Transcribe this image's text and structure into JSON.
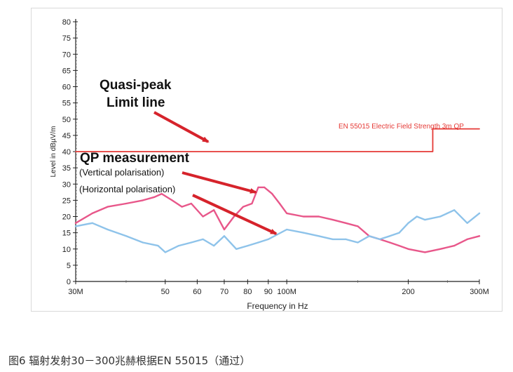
{
  "chart_data": {
    "type": "line",
    "title": "",
    "xlabel": "Frequency in Hz",
    "ylabel": "Level in dBµV/m",
    "x_scale": "log",
    "xlim": [
      30000000,
      300000000
    ],
    "ylim": [
      0,
      80
    ],
    "yticks": [
      0,
      5,
      10,
      15,
      20,
      25,
      30,
      35,
      40,
      45,
      50,
      55,
      60,
      65,
      70,
      75,
      80
    ],
    "xticks": [
      {
        "value": 30000000,
        "label": "30M"
      },
      {
        "value": 50000000,
        "label": "50"
      },
      {
        "value": 60000000,
        "label": "60"
      },
      {
        "value": 70000000,
        "label": "70"
      },
      {
        "value": 80000000,
        "label": "80"
      },
      {
        "value": 90000000,
        "label": "90"
      },
      {
        "value": 100000000,
        "label": "100M"
      },
      {
        "value": 200000000,
        "label": "200"
      },
      {
        "value": 300000000,
        "label": "300M"
      }
    ],
    "grid": false,
    "series": [
      {
        "name": "EN 55015 Electric Field Strength 3m QP",
        "color": "#e53935",
        "x": [
          30000000,
          230000000,
          230000000,
          300000000
        ],
        "y": [
          40,
          40,
          47,
          47
        ]
      },
      {
        "name": "Vertical polarisation",
        "color": "#e8578a",
        "x": [
          30000000,
          33000000,
          36000000,
          40000000,
          44000000,
          47000000,
          49000000,
          52000000,
          55000000,
          58000000,
          62000000,
          66000000,
          70000000,
          74000000,
          78000000,
          82000000,
          85000000,
          88000000,
          92000000,
          96000000,
          100000000,
          110000000,
          120000000,
          130000000,
          140000000,
          150000000,
          160000000,
          170000000,
          180000000,
          190000000,
          200000000,
          220000000,
          240000000,
          260000000,
          280000000,
          300000000
        ],
        "y": [
          18,
          21,
          23,
          24,
          25,
          26,
          27,
          25,
          23,
          24,
          20,
          22,
          16,
          20,
          23,
          24,
          29,
          29,
          27,
          24,
          21,
          20,
          20,
          19,
          18,
          17,
          14,
          13,
          12,
          11,
          10,
          9,
          10,
          11,
          13,
          14
        ]
      },
      {
        "name": "Horizontal polarisation",
        "color": "#8ec3ea",
        "x": [
          30000000,
          33000000,
          36000000,
          40000000,
          44000000,
          48000000,
          50000000,
          54000000,
          58000000,
          62000000,
          66000000,
          70000000,
          75000000,
          80000000,
          85000000,
          90000000,
          100000000,
          110000000,
          120000000,
          130000000,
          140000000,
          150000000,
          160000000,
          170000000,
          180000000,
          190000000,
          200000000,
          210000000,
          220000000,
          240000000,
          260000000,
          280000000,
          300000000
        ],
        "y": [
          17,
          18,
          16,
          14,
          12,
          11,
          9,
          11,
          12,
          13,
          11,
          14,
          10,
          11,
          12,
          13,
          16,
          15,
          14,
          13,
          13,
          12,
          14,
          13,
          14,
          15,
          18,
          20,
          19,
          20,
          22,
          18,
          21
        ]
      }
    ],
    "annotations": {
      "limit_title_1": "Quasi-peak",
      "limit_title_2": "Limit line",
      "qp_title": "QP measurement",
      "vertical": "(Vertical polarisation)",
      "horizontal": "(Horizontal polarisation)",
      "limit_label": "EN 55015 Electric Field Strength 3m QP",
      "arrow_color": "#d6232b"
    }
  },
  "caption": "图6 辐射发射30－300兆赫根据EN 55015（通过）"
}
